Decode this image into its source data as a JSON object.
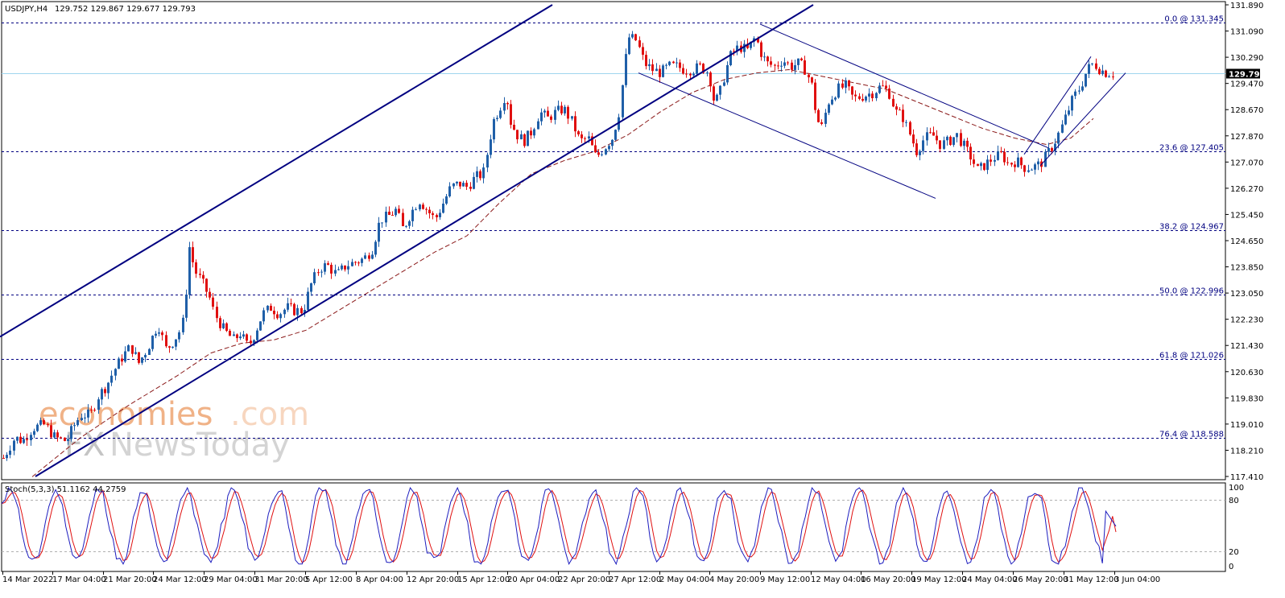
{
  "chart_info": {
    "symbol_label": "USDJPY,H4",
    "ohlc": "129.752 129.867 129.677 129.793"
  },
  "current_price": "129.793",
  "watermark": {
    "line1_part1": "economies",
    "line1_part2": ".com",
    "line2_part1": "FX",
    "line2_part2": "NewsToday"
  },
  "colors": {
    "bull_candle": "#1f5fa8",
    "bear_candle": "#e01010",
    "channel": "#000080",
    "fib_lines": "#000080",
    "moving_average": "#8b1a1a",
    "current_price_line": "#9fd6ee",
    "stoch_main": "#1d1dbf",
    "stoch_signal": "#e01010"
  },
  "stochastic": {
    "label": "Stoch(5,3,3) 51.1162 44.2759",
    "main_value": 51.1162,
    "signal_value": 44.2759,
    "ylim": [
      0,
      100
    ],
    "ticks": [
      "100",
      "80",
      "20",
      "0"
    ],
    "levels": [
      80,
      20
    ]
  },
  "chart_data": {
    "type": "candlestick",
    "ylim": [
      117.41,
      131.89
    ],
    "y_ticks": [
      "131.890",
      "131.090",
      "130.290",
      "129.470",
      "128.670",
      "127.870",
      "127.070",
      "126.270",
      "125.450",
      "124.650",
      "123.850",
      "123.050",
      "122.230",
      "121.430",
      "120.630",
      "119.830",
      "119.010",
      "118.210",
      "117.410"
    ],
    "x_ticks": [
      "14 Mar 2022",
      "17 Mar 04:00",
      "21 Mar 20:00",
      "24 Mar 12:00",
      "29 Mar 04:00",
      "31 Mar 20:00",
      "5 Apr 12:00",
      "8 Apr 04:00",
      "12 Apr 20:00",
      "15 Apr 12:00",
      "20 Apr 04:00",
      "22 Apr 20:00",
      "27 Apr 12:00",
      "2 May 04:00",
      "4 May 20:00",
      "9 May 12:00",
      "12 May 04:00",
      "16 May 20:00",
      "19 May 12:00",
      "24 May 04:00",
      "26 May 20:00",
      "31 May 12:00",
      "3 Jun 04:00"
    ],
    "fibonacci": [
      {
        "level": 131.345,
        "label": "0.0 @ 131.345"
      },
      {
        "level": 127.405,
        "label": "23.6 @ 127.405"
      },
      {
        "level": 124.967,
        "label": "38.2 @ 124.967"
      },
      {
        "level": 122.996,
        "label": "50.0 @ 122.996"
      },
      {
        "level": 121.026,
        "label": "61.8 @ 121.026"
      },
      {
        "level": 118.588,
        "label": "76.4 @ 118.588"
      }
    ],
    "current_price": 129.793,
    "price_path": [
      [
        0,
        117.8
      ],
      [
        18,
        118.6
      ],
      [
        28,
        118.5
      ],
      [
        40,
        118.9
      ],
      [
        55,
        119.0
      ],
      [
        68,
        118.6
      ],
      [
        82,
        118.5
      ],
      [
        90,
        118.9
      ],
      [
        100,
        119.3
      ],
      [
        112,
        119.3
      ],
      [
        122,
        119.9
      ],
      [
        132,
        120.2
      ],
      [
        142,
        120.7
      ],
      [
        152,
        121.1
      ],
      [
        162,
        121.4
      ],
      [
        172,
        120.9
      ],
      [
        182,
        121.3
      ],
      [
        196,
        122.1
      ],
      [
        206,
        121.3
      ],
      [
        216,
        121.6
      ],
      [
        226,
        122.0
      ],
      [
        232,
        123.4
      ],
      [
        236,
        124.8
      ],
      [
        240,
        123.8
      ],
      [
        250,
        123.4
      ],
      [
        260,
        122.9
      ],
      [
        266,
        122.4
      ],
      [
        278,
        121.9
      ],
      [
        290,
        121.6
      ],
      [
        298,
        121.8
      ],
      [
        308,
        121.4
      ],
      [
        316,
        121.8
      ],
      [
        326,
        122.4
      ],
      [
        336,
        122.6
      ],
      [
        346,
        122.4
      ],
      [
        356,
        122.6
      ],
      [
        366,
        122.5
      ],
      [
        376,
        122.5
      ],
      [
        386,
        123.3
      ],
      [
        396,
        123.8
      ],
      [
        406,
        123.9
      ],
      [
        418,
        123.6
      ],
      [
        430,
        123.9
      ],
      [
        442,
        124.0
      ],
      [
        452,
        124.1
      ],
      [
        462,
        124.4
      ],
      [
        472,
        125.3
      ],
      [
        482,
        125.4
      ],
      [
        492,
        125.6
      ],
      [
        500,
        125.0
      ],
      [
        510,
        125.5
      ],
      [
        520,
        125.9
      ],
      [
        530,
        125.6
      ],
      [
        540,
        125.3
      ],
      [
        550,
        125.8
      ],
      [
        560,
        126.3
      ],
      [
        570,
        126.4
      ],
      [
        580,
        126.3
      ],
      [
        590,
        126.6
      ],
      [
        600,
        126.7
      ],
      [
        606,
        127.5
      ],
      [
        612,
        128.3
      ],
      [
        620,
        128.7
      ],
      [
        628,
        129.2
      ],
      [
        634,
        128.3
      ],
      [
        642,
        127.9
      ],
      [
        650,
        127.7
      ],
      [
        660,
        128.0
      ],
      [
        670,
        128.6
      ],
      [
        680,
        128.4
      ],
      [
        690,
        128.6
      ],
      [
        700,
        128.7
      ],
      [
        710,
        128.3
      ],
      [
        720,
        127.7
      ],
      [
        730,
        127.8
      ],
      [
        740,
        127.2
      ],
      [
        750,
        127.5
      ],
      [
        760,
        127.8
      ],
      [
        768,
        128.5
      ],
      [
        774,
        129.7
      ],
      [
        780,
        130.9
      ],
      [
        790,
        130.8
      ],
      [
        800,
        130.1
      ],
      [
        810,
        129.9
      ],
      [
        820,
        129.8
      ],
      [
        830,
        130.0
      ],
      [
        840,
        130.0
      ],
      [
        850,
        129.9
      ],
      [
        860,
        129.9
      ],
      [
        870,
        130.0
      ],
      [
        880,
        129.8
      ],
      [
        886,
        129.0
      ],
      [
        892,
        129.0
      ],
      [
        900,
        129.8
      ],
      [
        908,
        130.4
      ],
      [
        918,
        130.6
      ],
      [
        928,
        130.5
      ],
      [
        938,
        130.9
      ],
      [
        945,
        130.4
      ],
      [
        952,
        130.1
      ],
      [
        962,
        130.0
      ],
      [
        972,
        130.2
      ],
      [
        982,
        130.0
      ],
      [
        992,
        130.1
      ],
      [
        1000,
        129.9
      ],
      [
        1008,
        129.4
      ],
      [
        1014,
        128.4
      ],
      [
        1020,
        128.1
      ],
      [
        1028,
        128.9
      ],
      [
        1040,
        129.3
      ],
      [
        1050,
        129.4
      ],
      [
        1060,
        129.0
      ],
      [
        1072,
        129.1
      ],
      [
        1084,
        129.2
      ],
      [
        1094,
        129.4
      ],
      [
        1104,
        129.2
      ],
      [
        1112,
        128.6
      ],
      [
        1120,
        128.5
      ],
      [
        1130,
        127.9
      ],
      [
        1138,
        127.4
      ],
      [
        1148,
        127.8
      ],
      [
        1158,
        127.9
      ],
      [
        1168,
        127.6
      ],
      [
        1178,
        127.7
      ],
      [
        1188,
        127.9
      ],
      [
        1198,
        127.5
      ],
      [
        1206,
        127.2
      ],
      [
        1214,
        126.8
      ],
      [
        1224,
        127.0
      ],
      [
        1234,
        127.2
      ],
      [
        1244,
        127.3
      ],
      [
        1252,
        127.0
      ],
      [
        1262,
        127.1
      ],
      [
        1272,
        126.9
      ],
      [
        1282,
        126.9
      ],
      [
        1292,
        127.0
      ],
      [
        1300,
        127.3
      ],
      [
        1308,
        127.6
      ],
      [
        1316,
        128.0
      ],
      [
        1324,
        128.5
      ],
      [
        1332,
        129.0
      ],
      [
        1342,
        129.4
      ],
      [
        1350,
        129.9
      ],
      [
        1358,
        130.1
      ],
      [
        1366,
        129.9
      ],
      [
        1374,
        129.8
      ],
      [
        1384,
        129.79
      ]
    ],
    "ma_path": [
      [
        40,
        117.4
      ],
      [
        100,
        118.6
      ],
      [
        160,
        119.6
      ],
      [
        220,
        120.5
      ],
      [
        262,
        121.2
      ],
      [
        300,
        121.5
      ],
      [
        340,
        121.6
      ],
      [
        380,
        121.9
      ],
      [
        420,
        122.5
      ],
      [
        460,
        123.1
      ],
      [
        500,
        123.7
      ],
      [
        540,
        124.3
      ],
      [
        580,
        124.8
      ],
      [
        620,
        125.8
      ],
      [
        660,
        126.7
      ],
      [
        700,
        127.1
      ],
      [
        740,
        127.4
      ],
      [
        780,
        127.9
      ],
      [
        820,
        128.6
      ],
      [
        860,
        129.2
      ],
      [
        900,
        129.6
      ],
      [
        940,
        129.8
      ],
      [
        980,
        129.9
      ],
      [
        1020,
        129.7
      ],
      [
        1060,
        129.5
      ],
      [
        1100,
        129.3
      ],
      [
        1140,
        128.9
      ],
      [
        1180,
        128.5
      ],
      [
        1220,
        128.1
      ],
      [
        1260,
        127.8
      ],
      [
        1300,
        127.6
      ],
      [
        1330,
        127.8
      ],
      [
        1358,
        128.4
      ]
    ],
    "trendlines": [
      {
        "name": "channel-upper",
        "weight": 2,
        "points": [
          [
            0,
            121.7
          ],
          [
            686,
            131.89
          ]
        ]
      },
      {
        "name": "channel-lower",
        "weight": 2,
        "points": [
          [
            44,
            117.41
          ],
          [
            1010,
            131.89
          ]
        ]
      },
      {
        "name": "descending-upper",
        "weight": 1,
        "points": [
          [
            944,
            131.3
          ],
          [
            1302,
            127.5
          ]
        ]
      },
      {
        "name": "descending-lower",
        "weight": 1,
        "points": [
          [
            793,
            129.8
          ],
          [
            1162,
            125.95
          ]
        ]
      },
      {
        "name": "rising-upper",
        "weight": 1,
        "points": [
          [
            1272,
            127.3
          ],
          [
            1355,
            130.3
          ]
        ]
      },
      {
        "name": "rising-lower",
        "weight": 1,
        "points": [
          [
            1292,
            126.95
          ],
          [
            1398,
            129.8
          ]
        ]
      }
    ]
  }
}
